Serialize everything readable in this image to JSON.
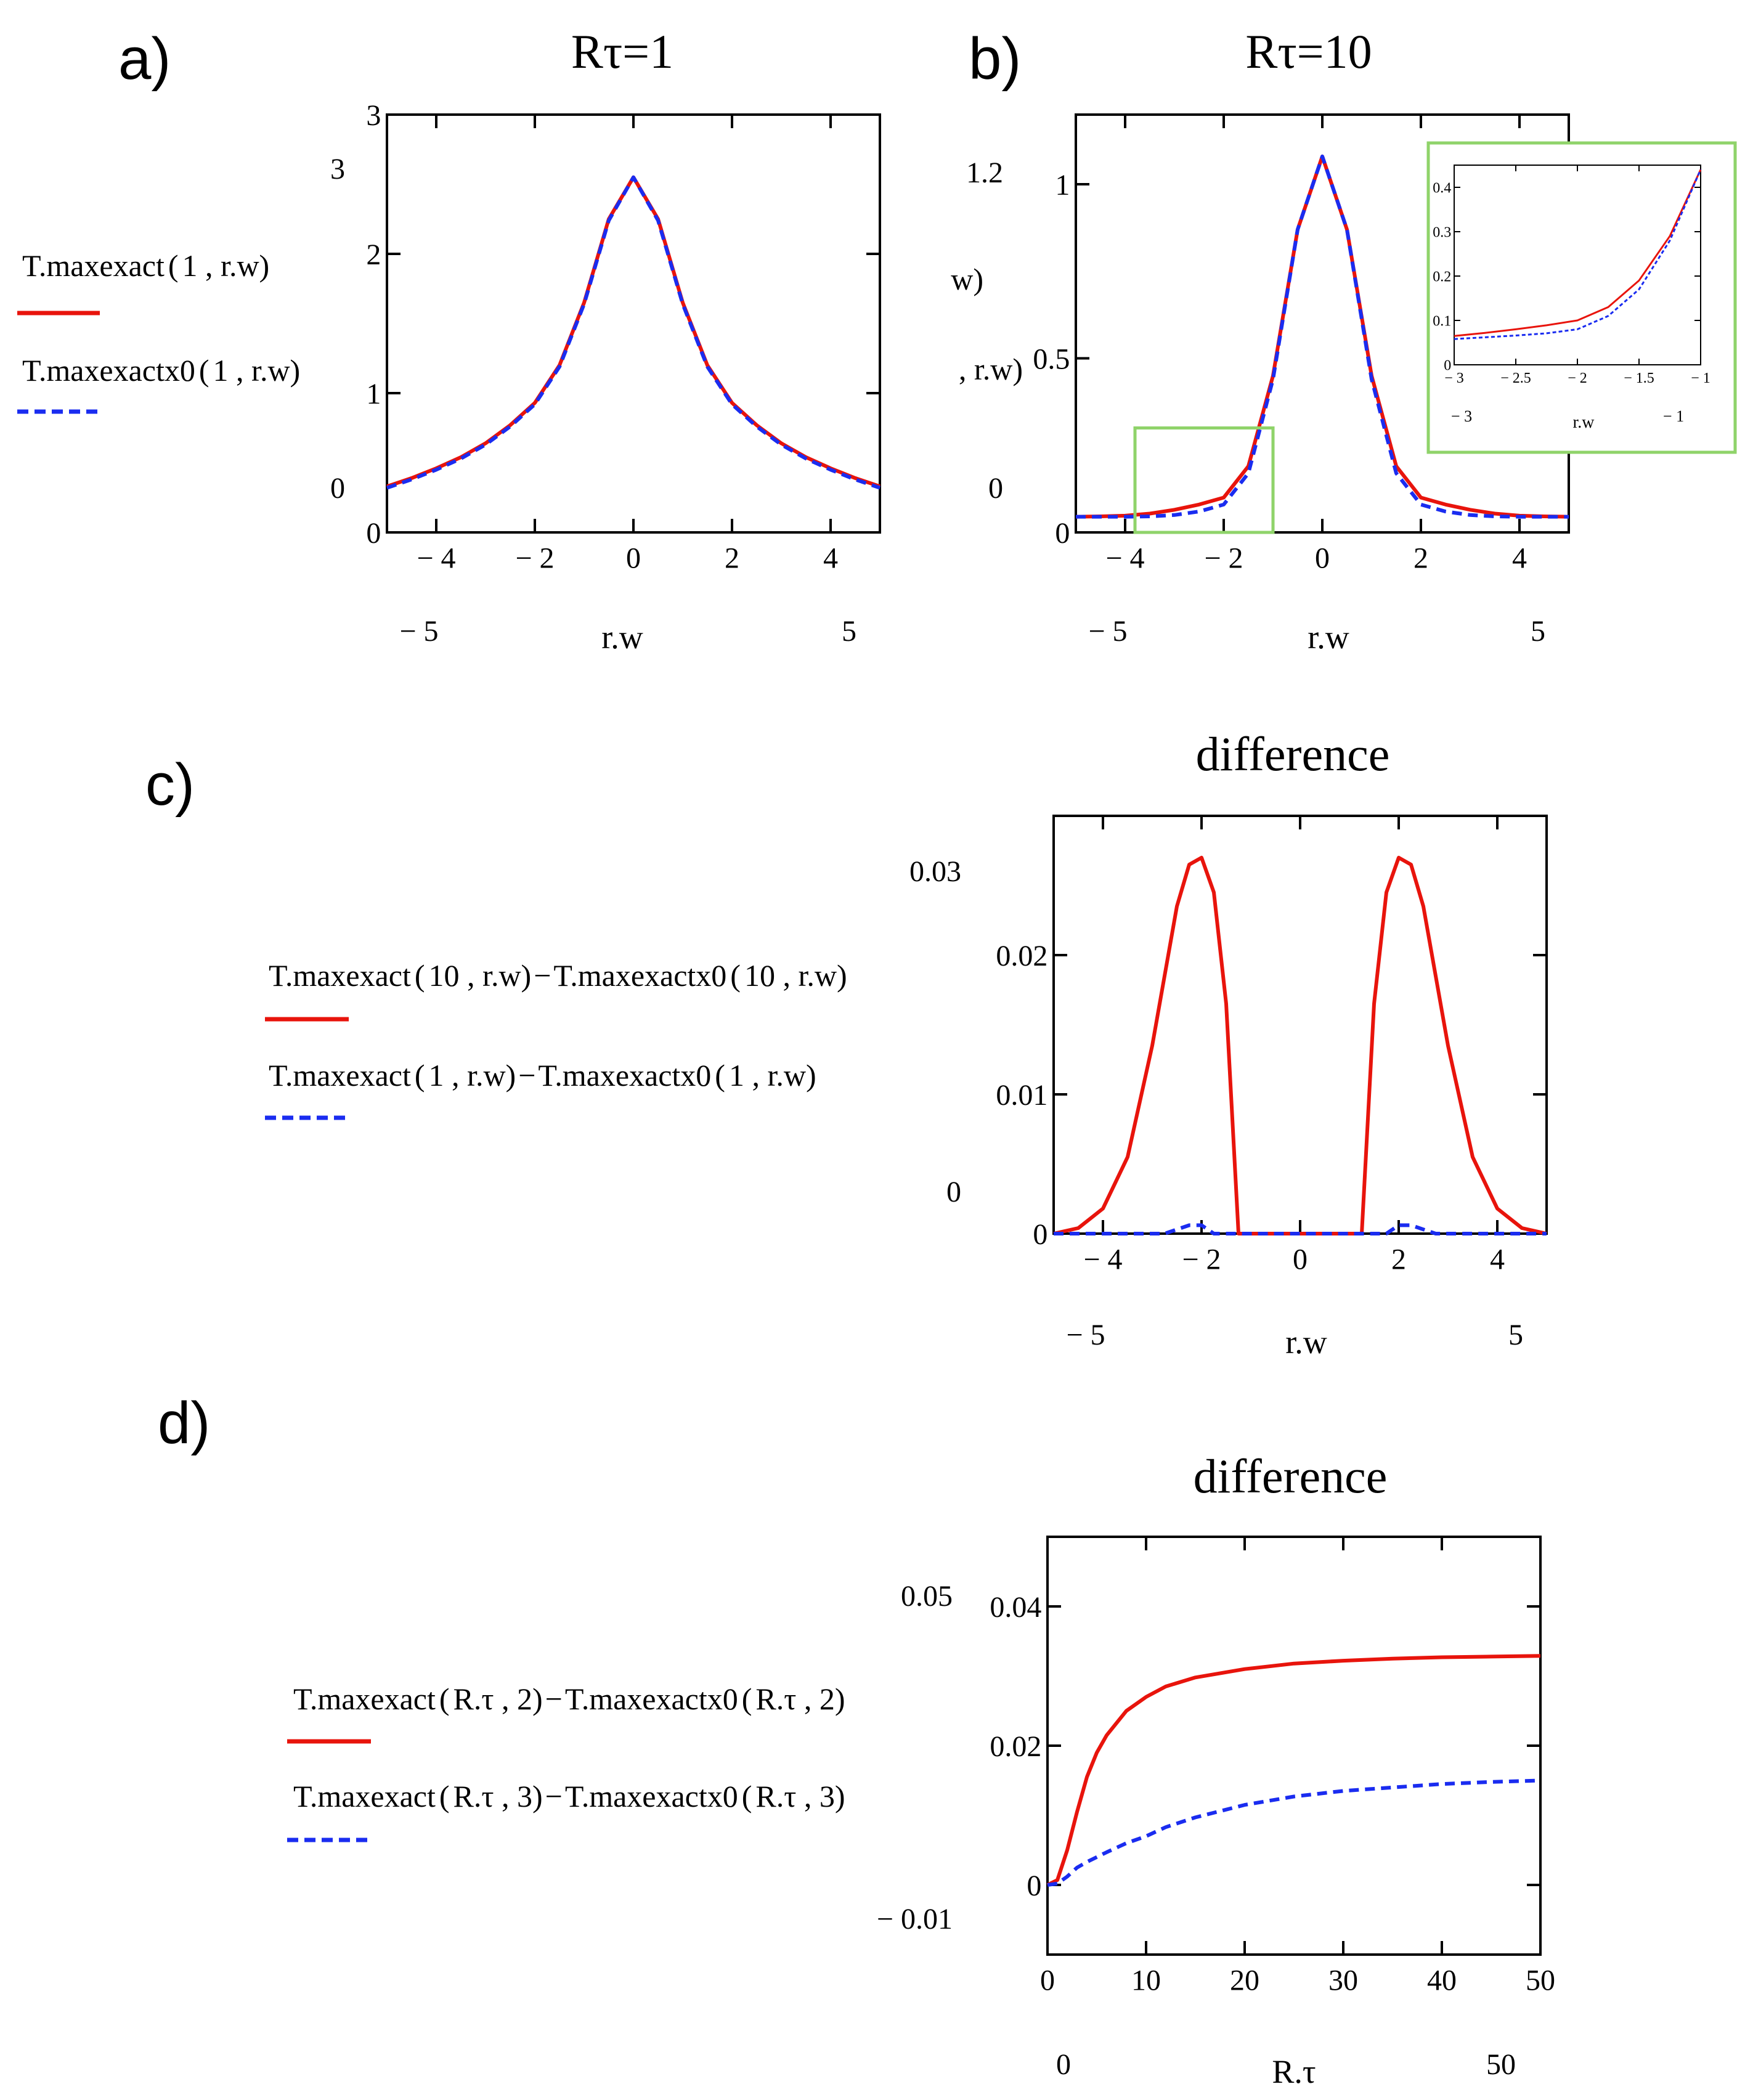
{
  "panel_labels": [
    "a)",
    "b)",
    "c)",
    "d)"
  ],
  "colors": {
    "exact": "#e8140c",
    "approx": "#1a2cf0",
    "inset_frame": "#8fd36a",
    "axis": "#000000"
  },
  "icons": [
    "legend-swatch-solid-red",
    "legend-swatch-dashed-blue"
  ],
  "chart_data": [
    {
      "id": "a",
      "type": "line",
      "title": "Rτ=1",
      "xlabel": "r.w",
      "ylabel": "",
      "xlim": [
        -5,
        5
      ],
      "ylim": [
        0,
        3
      ],
      "xticks": [
        -4,
        -2,
        0,
        2,
        4
      ],
      "yticks": [
        0,
        1,
        2,
        3
      ],
      "xlim_labels": [
        "− 5",
        "5"
      ],
      "ylim_labels": [
        "0",
        "3"
      ],
      "legend": [
        {
          "func": "T.maxexact",
          "args": "1 , r.w",
          "style": "solid"
        },
        {
          "func": "T.maxexactx0",
          "args": "1 , r.w",
          "style": "dashed"
        }
      ],
      "x": [
        -5,
        -4.5,
        -4,
        -3.5,
        -3,
        -2.5,
        -2,
        -1.5,
        -1,
        -0.5,
        0,
        0.5,
        1,
        1.5,
        2,
        2.5,
        3,
        3.5,
        4,
        4.5,
        5
      ],
      "series": [
        {
          "name": "T.maxexact(1,r.w)",
          "style": "solid",
          "values": [
            0.33,
            0.39,
            0.46,
            0.54,
            0.64,
            0.77,
            0.93,
            1.2,
            1.65,
            2.25,
            2.55,
            2.25,
            1.65,
            1.2,
            0.93,
            0.77,
            0.64,
            0.54,
            0.46,
            0.39,
            0.33
          ]
        },
        {
          "name": "T.maxexactx0(1,r.w)",
          "style": "dashed",
          "values": [
            0.32,
            0.38,
            0.45,
            0.53,
            0.63,
            0.76,
            0.92,
            1.19,
            1.64,
            2.24,
            2.55,
            2.24,
            1.64,
            1.19,
            0.92,
            0.76,
            0.63,
            0.53,
            0.45,
            0.38,
            0.32
          ]
        }
      ]
    },
    {
      "id": "b",
      "type": "line",
      "title": "Rτ=10",
      "xlabel": "r.w",
      "ylabel": "",
      "xlim": [
        -5,
        5
      ],
      "ylim": [
        0,
        1.2
      ],
      "xticks": [
        -4,
        -2,
        0,
        2,
        4
      ],
      "yticks": [
        0,
        0.5,
        1
      ],
      "xlim_labels": [
        "− 5",
        "5"
      ],
      "ylim_labels": [
        "0",
        "1.2"
      ],
      "legend_fragments": [
        "w)",
        ", r.w)"
      ],
      "x": [
        -5,
        -4.5,
        -4,
        -3.5,
        -3,
        -2.5,
        -2,
        -1.5,
        -1,
        -0.5,
        0,
        0.5,
        1,
        1.5,
        2,
        2.5,
        3,
        3.5,
        4,
        4.5,
        5
      ],
      "series": [
        {
          "name": "T.maxexact(10,r.w)",
          "style": "solid",
          "values": [
            0.045,
            0.046,
            0.048,
            0.054,
            0.065,
            0.08,
            0.1,
            0.19,
            0.45,
            0.87,
            1.08,
            0.87,
            0.45,
            0.19,
            0.1,
            0.08,
            0.065,
            0.054,
            0.048,
            0.046,
            0.045
          ]
        },
        {
          "name": "T.maxexactx0(10,r.w)",
          "style": "dashed",
          "values": [
            0.045,
            0.045,
            0.045,
            0.046,
            0.05,
            0.06,
            0.08,
            0.17,
            0.44,
            0.87,
            1.08,
            0.87,
            0.44,
            0.17,
            0.08,
            0.06,
            0.05,
            0.046,
            0.045,
            0.045,
            0.045
          ]
        }
      ],
      "zoom_box": {
        "x": [
          -3.8,
          -1
        ],
        "y": [
          0,
          0.3
        ]
      },
      "inset": {
        "xlim": [
          -3,
          -1
        ],
        "ylim": [
          0,
          0.45
        ],
        "xticks": [
          -3,
          -2.5,
          -2,
          -1.5,
          -1
        ],
        "yticks": [
          0,
          0.1,
          0.2,
          0.3,
          0.4
        ],
        "xlim_labels": [
          "− 3",
          "− 1"
        ],
        "xlabel": "r.w",
        "x": [
          -3,
          -2.75,
          -2.5,
          -2.25,
          -2,
          -1.75,
          -1.5,
          -1.25,
          -1
        ],
        "series": [
          {
            "style": "solid",
            "values": [
              0.065,
              0.072,
              0.08,
              0.089,
              0.1,
              0.13,
              0.19,
              0.29,
              0.44
            ]
          },
          {
            "style": "dashed",
            "values": [
              0.058,
              0.062,
              0.066,
              0.071,
              0.08,
              0.11,
              0.17,
              0.28,
              0.44
            ]
          }
        ]
      }
    },
    {
      "id": "c",
      "type": "line",
      "title": "difference",
      "xlabel": "r.w",
      "ylabel": "",
      "xlim": [
        -5,
        5
      ],
      "ylim": [
        0,
        0.03
      ],
      "xticks": [
        -4,
        -2,
        0,
        2,
        4
      ],
      "yticks": [
        0,
        0.01,
        0.02
      ],
      "xlim_labels": [
        "− 5",
        "5"
      ],
      "ylim_labels": [
        "0",
        "0.03"
      ],
      "legend": [
        {
          "func": "T.maxexact",
          "args": "10 , r.w",
          "minus_func": "T.maxexactx0",
          "minus_args": "10 , r.w",
          "style": "solid"
        },
        {
          "func": "T.maxexact",
          "args": "1 , r.w",
          "minus_func": "T.maxexactx0",
          "minus_args": "1 , r.w",
          "style": "dashed"
        }
      ],
      "x": [
        -5,
        -4.5,
        -4,
        -3.5,
        -3,
        -2.75,
        -2.5,
        -2.25,
        -2,
        -1.75,
        -1.5,
        -1.25,
        -1,
        0,
        1,
        1.25,
        1.5,
        1.75,
        2,
        2.25,
        2.5,
        2.75,
        3,
        3.5,
        4,
        4.5,
        5
      ],
      "series": [
        {
          "name": "T.maxexact(10,r.w)−T.maxexactx0(10,r.w)",
          "style": "solid",
          "values": [
            0,
            0.0004,
            0.0018,
            0.0055,
            0.0135,
            0.0185,
            0.0235,
            0.0265,
            0.027,
            0.0245,
            0.0165,
            0,
            0,
            0,
            0,
            0,
            0.0165,
            0.0245,
            0.027,
            0.0265,
            0.0235,
            0.0185,
            0.0135,
            0.0055,
            0.0018,
            0.0004,
            0
          ]
        },
        {
          "name": "T.maxexact(1,r.w)−T.maxexactx0(1,r.w)",
          "style": "dashed",
          "values": [
            0,
            0,
            0,
            0,
            0,
            0,
            0.0003,
            0.0006,
            0.0006,
            0,
            0,
            0,
            0,
            0,
            0,
            0,
            0,
            0,
            0.0006,
            0.0006,
            0.0003,
            0,
            0,
            0,
            0,
            0,
            0
          ]
        }
      ]
    },
    {
      "id": "d",
      "type": "line",
      "title": "difference",
      "xlabel": "R.τ",
      "ylabel": "",
      "xlim": [
        0,
        50
      ],
      "ylim": [
        -0.01,
        0.05
      ],
      "xticks": [
        0,
        10,
        20,
        30,
        40,
        50
      ],
      "yticks": [
        0,
        0.02,
        0.04
      ],
      "xlim_labels": [
        "0",
        "50"
      ],
      "ylim_labels": [
        "− 0.01",
        "0.05"
      ],
      "legend": [
        {
          "func": "T.maxexact",
          "args": "R.τ , 2",
          "minus_func": "T.maxexactx0",
          "minus_args": "R.τ , 2",
          "style": "solid"
        },
        {
          "func": "T.maxexact",
          "args": "R.τ , 3",
          "minus_func": "T.maxexactx0",
          "minus_args": "R.τ , 3",
          "style": "dashed"
        }
      ],
      "x": [
        0,
        1,
        2,
        3,
        4,
        5,
        6,
        8,
        10,
        12,
        15,
        20,
        25,
        30,
        35,
        40,
        45,
        50
      ],
      "series": [
        {
          "name": "T.maxexact(R.τ,2)−T.maxexactx0(R.τ,2)",
          "style": "solid",
          "values": [
            0,
            0.0007,
            0.005,
            0.0105,
            0.0155,
            0.019,
            0.0215,
            0.025,
            0.027,
            0.0285,
            0.0298,
            0.031,
            0.0318,
            0.0322,
            0.0325,
            0.0327,
            0.0328,
            0.0329
          ]
        },
        {
          "name": "T.maxexact(R.τ,3)−T.maxexactx0(R.τ,3)",
          "style": "dashed",
          "values": [
            0,
            0.0002,
            0.0012,
            0.0025,
            0.0033,
            0.004,
            0.0047,
            0.006,
            0.007,
            0.0083,
            0.0097,
            0.0115,
            0.0127,
            0.0135,
            0.014,
            0.0145,
            0.0148,
            0.015
          ]
        }
      ]
    }
  ]
}
